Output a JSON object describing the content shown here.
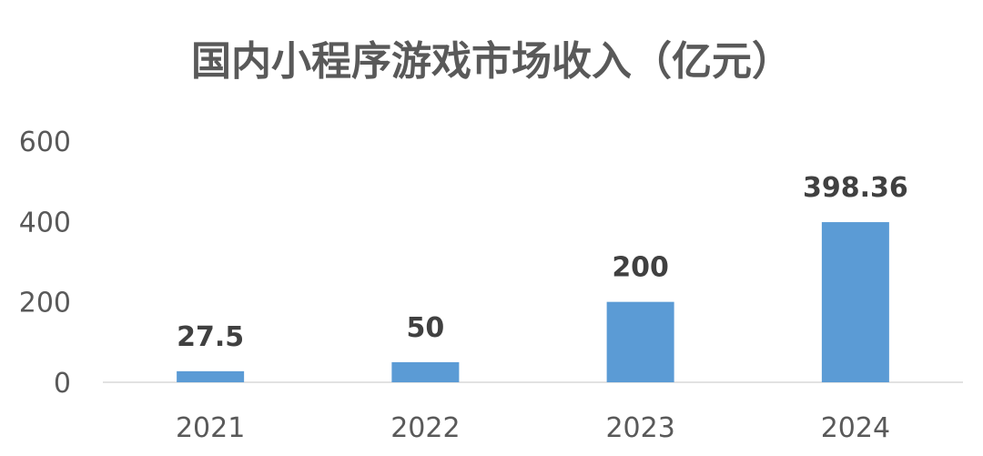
{
  "chart_data": {
    "type": "bar",
    "title": "国内小程序游戏市场收入（亿元）",
    "categories": [
      "2021",
      "2022",
      "2023",
      "2024"
    ],
    "values": [
      27.5,
      50,
      200,
      398.36
    ],
    "data_labels": [
      "27.5",
      "50",
      "200",
      "398.36"
    ],
    "yticks": [
      "0",
      "200",
      "400",
      "600"
    ],
    "ylim": [
      0,
      600
    ],
    "grid": false,
    "legend": "none",
    "colors": {
      "bar": "#5B9BD5",
      "title": "#595959",
      "label": "#404040",
      "axis_text": "#595959",
      "axis_line": "#D9D9D9"
    }
  }
}
